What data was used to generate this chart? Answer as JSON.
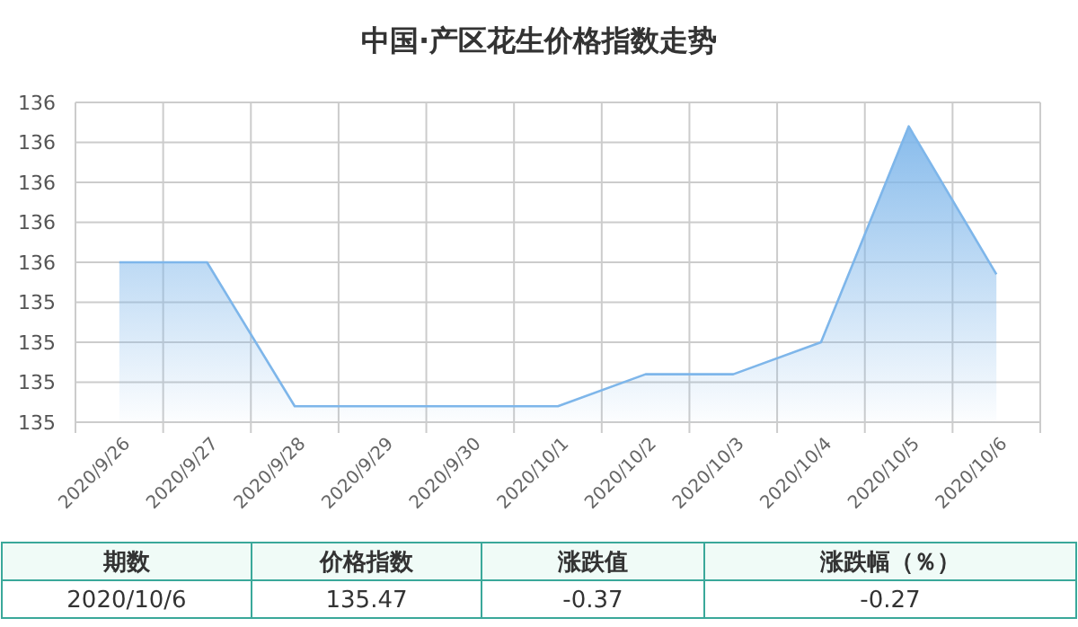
{
  "chart_data": {
    "type": "area",
    "title": "中国·产区花生价格指数走势",
    "categories": [
      "2020/9/26",
      "2020/9/27",
      "2020/9/28",
      "2020/9/29",
      "2020/9/30",
      "2020/10/1",
      "2020/10/2",
      "2020/10/3",
      "2020/10/4",
      "2020/10/5",
      "2020/10/6"
    ],
    "series": [
      {
        "color": "#7eb6ea",
        "values": [
          135.5,
          135.5,
          135.14,
          135.14,
          135.14,
          135.14,
          135.22,
          135.22,
          135.3,
          135.84,
          135.47
        ]
      }
    ],
    "ylim": [
      135.1,
      135.9
    ],
    "yticks": [
      {
        "value": 135.1,
        "label": "135"
      },
      {
        "value": 135.2,
        "label": "135"
      },
      {
        "value": 135.3,
        "label": "135"
      },
      {
        "value": 135.4,
        "label": "135"
      },
      {
        "value": 135.5,
        "label": "136"
      },
      {
        "value": 135.6,
        "label": "136"
      },
      {
        "value": 135.7,
        "label": "136"
      },
      {
        "value": 135.8,
        "label": "136"
      },
      {
        "value": 135.9,
        "label": "136"
      }
    ],
    "grid": true,
    "annotations": [
      "期数",
      "价格指数",
      "涨跌值",
      "涨跌幅（％）",
      "2020/10/6",
      "135.47",
      "-0.37",
      "-0.27"
    ]
  }
}
